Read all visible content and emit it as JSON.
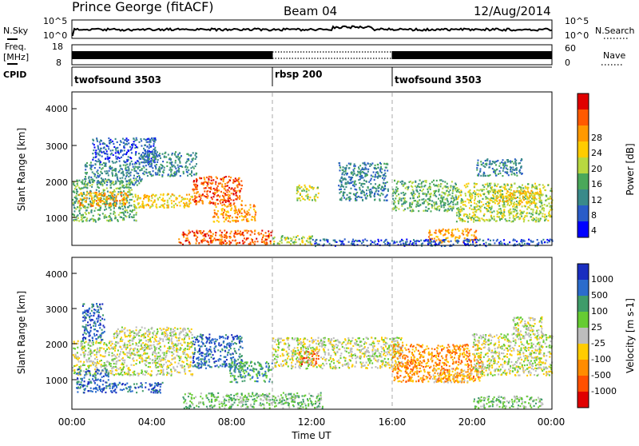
{
  "header": {
    "station": "Prince George (fitACF)",
    "beam": "Beam 04",
    "date": "12/Aug/2014"
  },
  "top_panels": {
    "nsky": {
      "label": "N.Sky",
      "ticks": [
        "10^5",
        "10^0"
      ]
    },
    "nsearch": {
      "label": "N.Search",
      "ticks": [
        "10^5",
        "10^0"
      ]
    },
    "freq": {
      "label_lines": [
        "Freq.",
        "[MHz]"
      ],
      "ticks": [
        "18",
        "8"
      ]
    },
    "nave": {
      "label": "Nave",
      "ticks": [
        "60",
        "0"
      ]
    },
    "cpid": {
      "label": "CPID",
      "segments": [
        {
          "name": "twofsound 3503",
          "start_h": 0,
          "end_h": 10
        },
        {
          "name": "rbsp 200",
          "start_h": 10,
          "end_h": 16
        },
        {
          "name": "twofsound 3503",
          "start_h": 16,
          "end_h": 24
        }
      ]
    }
  },
  "power_colorbar": {
    "label": "Power [dB]",
    "ticks": [
      "28",
      "24",
      "20",
      "16",
      "12",
      "8",
      "4"
    ],
    "colors": [
      "#e00000",
      "#ff5a00",
      "#ff9900",
      "#ffcc00",
      "#b8d840",
      "#4aa85a",
      "#3a8a8a",
      "#2a5cc8",
      "#0000ff"
    ]
  },
  "velocity_colorbar": {
    "label": "Velocity [m s-1]",
    "ticks": [
      "1000",
      "500",
      "100",
      "25",
      "-25",
      "-100",
      "-500",
      "-1000"
    ],
    "colors": [
      "#1a2ec0",
      "#2b6ccc",
      "#3f9c6a",
      "#66cc33",
      "#bdbdbd",
      "#ffcc00",
      "#ff8c00",
      "#ff5000",
      "#e00000"
    ]
  },
  "chart_data": [
    {
      "type": "heatmap",
      "title": "Power",
      "ylabel": "Slant Range [km]",
      "y_ticks": [
        "4000",
        "3000",
        "2000",
        "1000"
      ],
      "ylim": [
        200,
        4600
      ],
      "xlim": [
        0,
        24
      ],
      "dashed_lines_h": [
        10,
        16
      ],
      "bands": [
        {
          "t0": 0.0,
          "t1": 3.2,
          "r0": 900,
          "r1": 2100,
          "level": 3
        },
        {
          "t0": 0.3,
          "t1": 2.8,
          "r0": 1350,
          "r1": 1750,
          "level": 6
        },
        {
          "t0": 0.6,
          "t1": 3.5,
          "r0": 1950,
          "r1": 2600,
          "level": 2
        },
        {
          "t0": 1.0,
          "t1": 4.2,
          "r0": 2600,
          "r1": 3300,
          "level": 1
        },
        {
          "t0": 3.0,
          "t1": 6.0,
          "r0": 1300,
          "r1": 1700,
          "level": 5
        },
        {
          "t0": 3.5,
          "t1": 6.2,
          "r0": 2200,
          "r1": 2900,
          "level": 2
        },
        {
          "t0": 6.0,
          "t1": 8.5,
          "r0": 1400,
          "r1": 2200,
          "level": 7
        },
        {
          "t0": 7.0,
          "t1": 9.2,
          "r0": 900,
          "r1": 1400,
          "level": 6
        },
        {
          "t0": 5.3,
          "t1": 10.0,
          "r0": 250,
          "r1": 650,
          "level": 7
        },
        {
          "t0": 10.0,
          "t1": 12.0,
          "r0": 250,
          "r1": 500,
          "level": 4
        },
        {
          "t0": 11.2,
          "t1": 12.3,
          "r0": 1500,
          "r1": 1950,
          "level": 4
        },
        {
          "t0": 13.3,
          "t1": 15.8,
          "r0": 1500,
          "r1": 2600,
          "level": 2
        },
        {
          "t0": 16.0,
          "t1": 19.2,
          "r0": 1200,
          "r1": 2100,
          "level": 3
        },
        {
          "t0": 17.8,
          "t1": 20.2,
          "r0": 300,
          "r1": 700,
          "level": 6
        },
        {
          "t0": 19.2,
          "t1": 24.0,
          "r0": 900,
          "r1": 2000,
          "level": 4
        },
        {
          "t0": 20.2,
          "t1": 22.5,
          "r0": 2200,
          "r1": 2700,
          "level": 2
        },
        {
          "t0": 21.0,
          "t1": 23.5,
          "r0": 1400,
          "r1": 1800,
          "level": 5
        },
        {
          "t0": 12.0,
          "t1": 24.0,
          "r0": 200,
          "r1": 400,
          "level": 1
        }
      ]
    },
    {
      "type": "heatmap",
      "title": "Velocity",
      "ylabel": "Slant Range [km]",
      "xlabel": "Time UT",
      "x_ticks": [
        "00:00",
        "04:00",
        "08:00",
        "12:00",
        "16:00",
        "20:00",
        "00:00"
      ],
      "y_ticks": [
        "4000",
        "3000",
        "2000",
        "1000"
      ],
      "ylim": [
        200,
        4600
      ],
      "xlim": [
        0,
        24
      ],
      "dashed_lines_h": [
        10,
        16
      ],
      "bands": [
        {
          "t0": 0.0,
          "t1": 2.0,
          "r0": 1200,
          "r1": 2200,
          "level": 4
        },
        {
          "t0": 0.2,
          "t1": 1.8,
          "r0": 700,
          "r1": 1400,
          "level": 7
        },
        {
          "t0": 0.5,
          "t1": 1.6,
          "r0": 2200,
          "r1": 3300,
          "level": 7
        },
        {
          "t0": 1.8,
          "t1": 4.5,
          "r0": 700,
          "r1": 1000,
          "level": 7
        },
        {
          "t0": 2.0,
          "t1": 6.0,
          "r0": 1200,
          "r1": 2600,
          "level": 4
        },
        {
          "t0": 6.0,
          "t1": 8.5,
          "r0": 1400,
          "r1": 2400,
          "level": 7
        },
        {
          "t0": 7.8,
          "t1": 10.0,
          "r0": 1000,
          "r1": 1600,
          "level": 6
        },
        {
          "t0": 5.5,
          "t1": 12.5,
          "r0": 250,
          "r1": 700,
          "level": 5
        },
        {
          "t0": 11.2,
          "t1": 12.3,
          "r0": 1500,
          "r1": 1900,
          "level": 1
        },
        {
          "t0": 10.0,
          "t1": 16.5,
          "r0": 1400,
          "r1": 2300,
          "level": 4
        },
        {
          "t0": 16.0,
          "t1": 20.5,
          "r0": 1000,
          "r1": 2100,
          "level": 2
        },
        {
          "t0": 18.0,
          "t1": 20.0,
          "r0": 1000,
          "r1": 1400,
          "level": 3
        },
        {
          "t0": 20.0,
          "t1": 24.0,
          "r0": 1200,
          "r1": 2400,
          "level": 4
        },
        {
          "t0": 20.0,
          "t1": 23.5,
          "r0": 250,
          "r1": 600,
          "level": 5
        },
        {
          "t0": 22.0,
          "t1": 23.5,
          "r0": 2300,
          "r1": 2900,
          "level": 4
        }
      ]
    }
  ]
}
